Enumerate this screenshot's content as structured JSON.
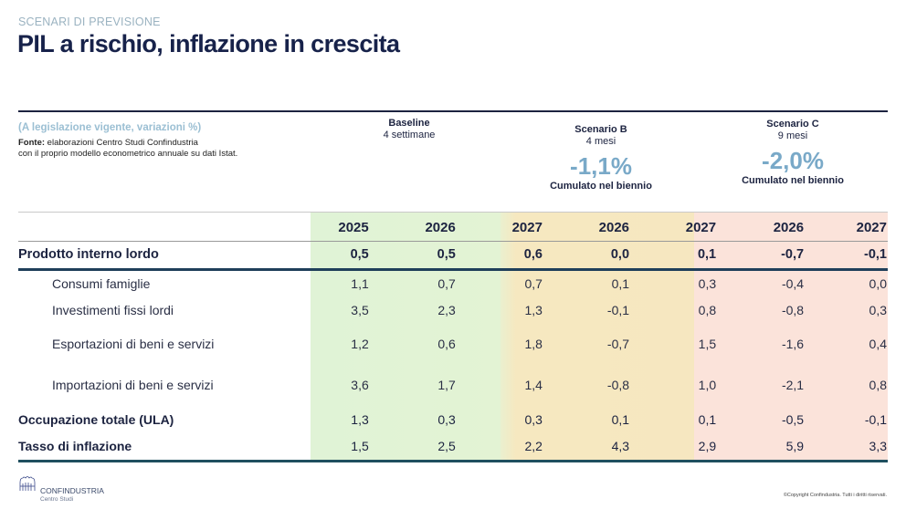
{
  "header": {
    "kicker": "SCENARI DI PREVISIONE",
    "title": "PIL a rischio, inflazione in crescita"
  },
  "notes": {
    "subtitle": "(A legislazione vigente, variazioni %)",
    "source_label": "Fonte:",
    "source_text": "elaborazioni Centro Studi Confindustria",
    "source_text2": "con il proprio modello econometrico annuale su dati Istat."
  },
  "scenarios": {
    "baseline": {
      "name": "Baseline",
      "duration": "4 settimane"
    },
    "b": {
      "name": "Scenario B",
      "duration": "4 mesi",
      "cumulative": "-1,1%",
      "cumulative_label": "Cumulato nel biennio"
    },
    "c": {
      "name": "Scenario C",
      "duration": "9 mesi",
      "cumulative": "-2,0%",
      "cumulative_label": "Cumulato nel biennio"
    }
  },
  "colors": {
    "baseline_band": "#e1f3d5",
    "scenario_b_band": "#f6e7c0",
    "scenario_c_band": "#fbe3da",
    "accent": "#79a9c8",
    "title": "#17224a"
  },
  "table": {
    "years": [
      "2025",
      "2026",
      "2027",
      "2026",
      "2027",
      "2026",
      "2027"
    ],
    "rows": [
      {
        "label": "Prodotto interno lordo",
        "values": [
          "0,5",
          "0,5",
          "0,6",
          "0,0",
          "0,1",
          "-0,7",
          "-0,1"
        ]
      },
      {
        "label": "Consumi famiglie",
        "values": [
          "1,1",
          "0,7",
          "0,7",
          "0,1",
          "0,3",
          "-0,4",
          "0,0"
        ]
      },
      {
        "label": "Investimenti fissi lordi",
        "values": [
          "3,5",
          "2,3",
          "1,3",
          "-0,1",
          "0,8",
          "-0,8",
          "0,3"
        ]
      },
      {
        "label": "Esportazioni di beni e servizi",
        "values": [
          "1,2",
          "0,6",
          "1,8",
          "-0,7",
          "1,5",
          "-1,6",
          "0,4"
        ]
      },
      {
        "label": "Importazioni di beni e servizi",
        "values": [
          "3,6",
          "1,7",
          "1,4",
          "-0,8",
          "1,0",
          "-2,1",
          "0,8"
        ]
      },
      {
        "label": "Occupazione totale (ULA)",
        "values": [
          "1,3",
          "0,3",
          "0,3",
          "0,1",
          "0,1",
          "-0,5",
          "-0,1"
        ]
      },
      {
        "label": "Tasso di inflazione",
        "values": [
          "1,5",
          "2,5",
          "2,2",
          "4,3",
          "2,9",
          "5,9",
          "3,3"
        ]
      }
    ]
  },
  "footer": {
    "logo_name": "CONFINDUSTRIA",
    "logo_sub": "Centro Studi",
    "logo_icon": "confindustria-logo-icon",
    "copyright": "©Copyright Confindustria. Tutti i diritti riservati."
  }
}
